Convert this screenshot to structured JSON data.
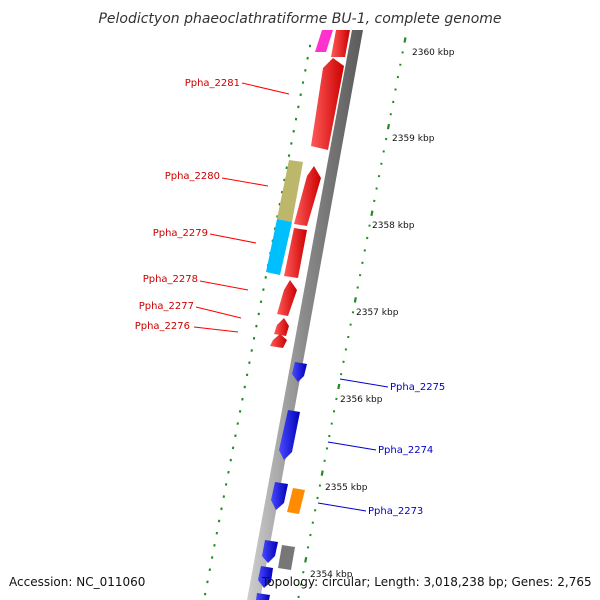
{
  "title": "Pelodictyon phaeoclathratiforme BU-1, complete genome",
  "footer": {
    "accession": "Accession: NC_011060",
    "summary": "Topology: circular; Length: 3,018,238 bp; Genes: 2,765"
  },
  "ticks": [
    {
      "label": "2360 kbp"
    },
    {
      "label": "2359 kbp"
    },
    {
      "label": "2358 kbp"
    },
    {
      "label": "2357 kbp"
    },
    {
      "label": "2356 kbp"
    },
    {
      "label": "2355 kbp"
    },
    {
      "label": "2354 kbp"
    }
  ],
  "gene_labels": [
    {
      "id": "Ppha_2281",
      "strand": "forward"
    },
    {
      "id": "Ppha_2280",
      "strand": "forward"
    },
    {
      "id": "Ppha_2279",
      "strand": "forward"
    },
    {
      "id": "Ppha_2278",
      "strand": "forward"
    },
    {
      "id": "Ppha_2277",
      "strand": "forward"
    },
    {
      "id": "Ppha_2276",
      "strand": "forward"
    },
    {
      "id": "Ppha_2275",
      "strand": "reverse"
    },
    {
      "id": "Ppha_2274",
      "strand": "reverse"
    },
    {
      "id": "Ppha_2273",
      "strand": "reverse"
    }
  ],
  "colors": {
    "forward_gene": "#ff0000",
    "reverse_gene": "#0000ff",
    "pink_feature": "#ff33cc",
    "khaki_feature": "#bdb76b",
    "cyan_feature": "#00bfff",
    "orange_feature": "#ff8c00",
    "gray_feature": "#777777",
    "backbone": "#888888",
    "gc_dots": "#228b22"
  }
}
